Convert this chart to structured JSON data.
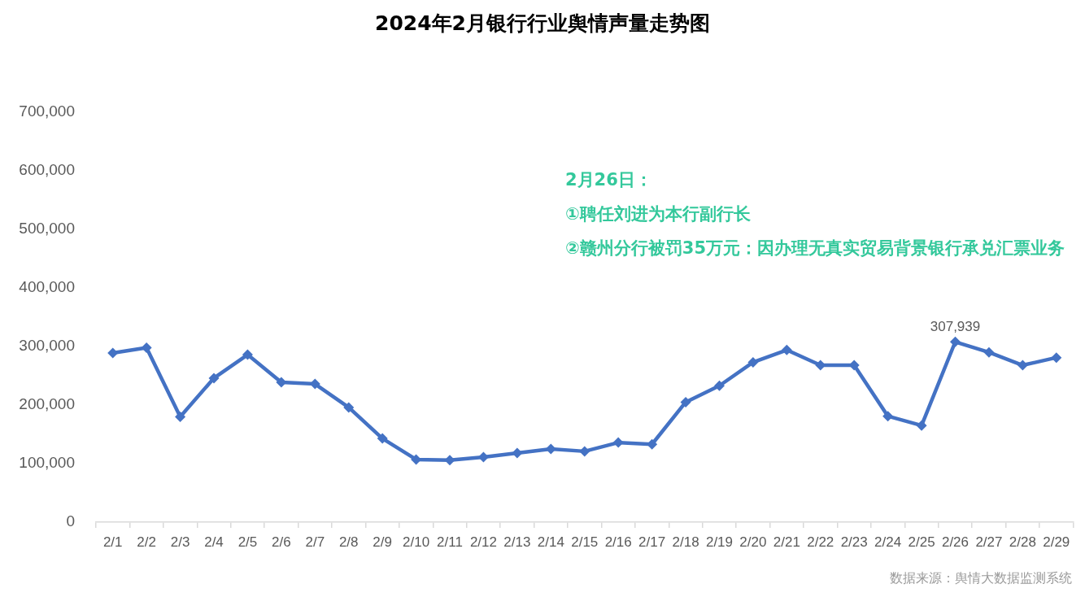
{
  "chart_data": {
    "type": "line",
    "title": "2024年2月银行行业舆情声量走势图",
    "categories": [
      "2/1",
      "2/2",
      "2/3",
      "2/4",
      "2/5",
      "2/6",
      "2/7",
      "2/8",
      "2/9",
      "2/10",
      "2/11",
      "2/12",
      "2/13",
      "2/14",
      "2/15",
      "2/16",
      "2/17",
      "2/18",
      "2/19",
      "2/20",
      "2/21",
      "2/22",
      "2/23",
      "2/24",
      "2/25",
      "2/26",
      "2/27",
      "2/28",
      "2/29"
    ],
    "series": [
      {
        "color": "#4472c4",
        "values": [
          289000,
          298000,
          180000,
          246000,
          286000,
          239000,
          236000,
          196000,
          143000,
          107000,
          106000,
          111000,
          118000,
          125000,
          121000,
          136000,
          133000,
          205000,
          233000,
          273000,
          294000,
          268000,
          268000,
          181000,
          165000,
          307939,
          290000,
          268000,
          281000
        ],
        "value_labels": [
          null,
          null,
          null,
          null,
          null,
          null,
          null,
          null,
          null,
          null,
          null,
          null,
          null,
          null,
          null,
          null,
          null,
          null,
          null,
          null,
          null,
          null,
          null,
          null,
          null,
          "307,939",
          null,
          null,
          null
        ]
      }
    ],
    "ylim": [
      0,
      700000
    ],
    "yticks": [
      0,
      {
        "value": 100000,
        "label": "100,000"
      },
      {
        "value": 200000,
        "label": "200,000"
      },
      {
        "value": 300000,
        "label": "300,000"
      },
      {
        "value": 400000,
        "label": "400,000"
      },
      {
        "value": 500000,
        "label": "500,000"
      },
      {
        "value": 600000,
        "label": "600,000"
      },
      {
        "value": 700000,
        "label": "700,000"
      }
    ],
    "marker": "diamond",
    "line_style": "solid",
    "annotations": [
      "2月26日：",
      "①聘任刘进为本行副行长",
      "②赣州分行被罚35万元：因办理无真实贸易背景银行承兑汇票业务",
      "数据来源：舆情大数据监测系统"
    ]
  }
}
